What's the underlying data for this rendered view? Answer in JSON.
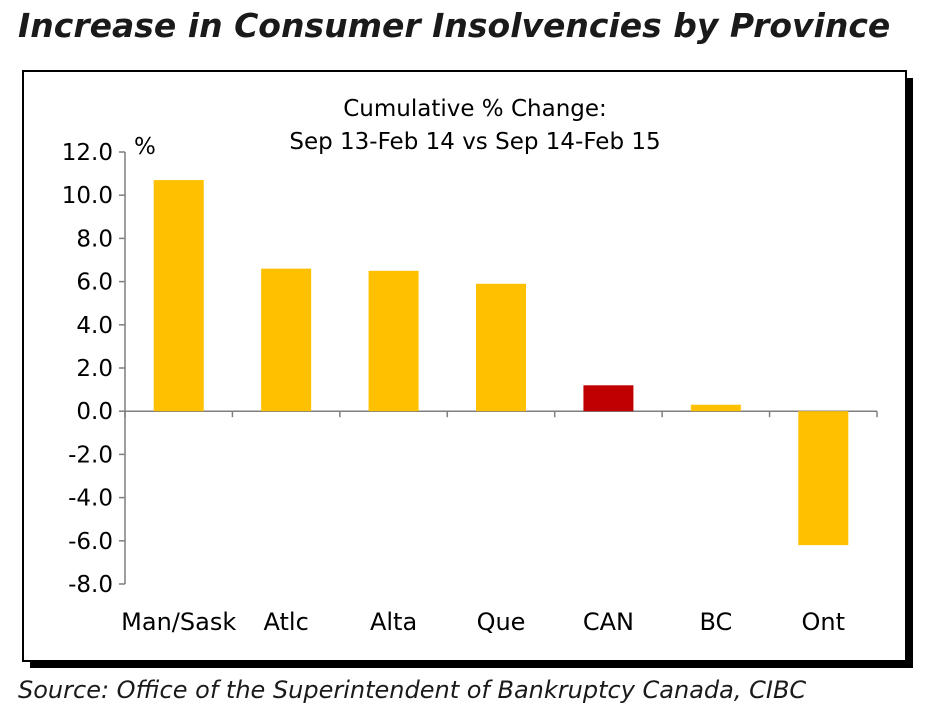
{
  "page": {
    "title": "Increase in Consumer Insolvencies by Province",
    "source": "Source:  Office of the Superintendent of Bankruptcy Canada, CIBC"
  },
  "chart_data": {
    "type": "bar",
    "title": "Cumulative % Change:",
    "subtitle": "Sep 13-Feb 14 vs Sep 14-Feb 15",
    "ylabel": "%",
    "xlabel": "",
    "ylim": [
      -8.0,
      12.0
    ],
    "yticks": [
      "12.0",
      "10.0",
      "8.0",
      "6.0",
      "4.0",
      "2.0",
      "0.0",
      "-2.0",
      "-4.0",
      "-6.0",
      "-8.0"
    ],
    "categories": [
      "Man/Sask",
      "Atlc",
      "Alta",
      "Que",
      "CAN",
      "BC",
      "Ont"
    ],
    "values": [
      10.7,
      6.6,
      6.5,
      5.9,
      1.2,
      0.3,
      -6.2
    ],
    "colors": [
      "#FFC000",
      "#FFC000",
      "#FFC000",
      "#FFC000",
      "#C00000",
      "#FFC000",
      "#FFC000"
    ],
    "grid": false,
    "legend": "none"
  }
}
